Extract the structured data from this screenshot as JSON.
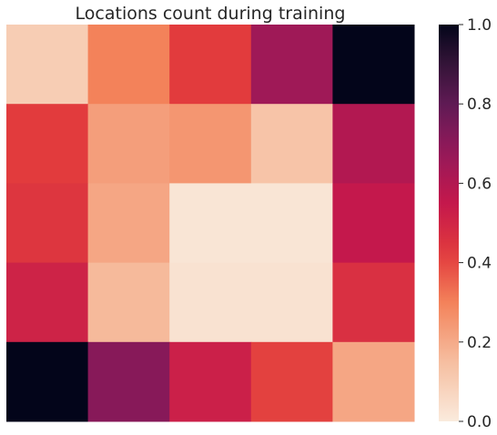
{
  "chart_data": {
    "type": "heatmap",
    "title": "Locations count during training",
    "rows": 5,
    "cols": 5,
    "values": [
      [
        0.1,
        0.3,
        0.42,
        0.65,
        1.0
      ],
      [
        0.42,
        0.23,
        0.25,
        0.13,
        0.6
      ],
      [
        0.44,
        0.21,
        0.02,
        0.02,
        0.55
      ],
      [
        0.51,
        0.16,
        0.03,
        0.03,
        0.46
      ],
      [
        1.0,
        0.71,
        0.52,
        0.41,
        0.21
      ]
    ],
    "vmin": 0.0,
    "vmax": 1.0,
    "colormap": "rocket_r",
    "colorbar_ticks": [
      "0.0",
      "0.2",
      "0.4",
      "0.6",
      "0.8",
      "1.0"
    ],
    "colorbar_tick_values": [
      0.0,
      0.2,
      0.4,
      0.6,
      0.8,
      1.0
    ],
    "xticklabels": [],
    "yticklabels": [],
    "grid": false
  }
}
